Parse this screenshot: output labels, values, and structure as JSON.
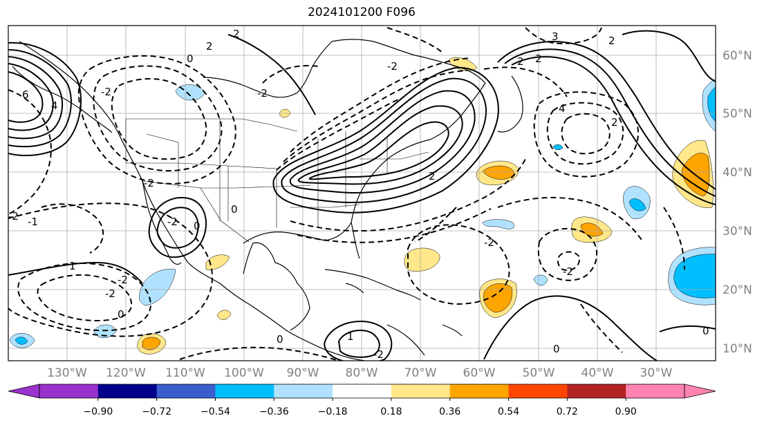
{
  "title": "2024101200 F096",
  "latitude_labels": [
    "60°N",
    "50°N",
    "40°N",
    "30°N",
    "20°N",
    "10°N"
  ],
  "longitude_labels": [
    "130°W",
    "120°W",
    "110°W",
    "100°W",
    "90°W",
    "80°W",
    "70°W",
    "60°W",
    "50°W",
    "40°W",
    "30°W"
  ],
  "colorbar": {
    "colors": [
      "#9a32cd",
      "#00008b",
      "#3a5fcd",
      "#00bfff",
      "#b0e2ff",
      "#ffffff",
      "#ffe78a",
      "#ffa500",
      "#ff4500",
      "#b22222",
      "#ff83b0"
    ],
    "under_color": "#9a32cd",
    "over_color": "#ff83b0",
    "tick_labels": [
      "−0.90",
      "−0.72",
      "−0.54",
      "−0.36",
      "−0.18",
      "0.18",
      "0.36",
      "0.54",
      "0.72",
      "0.90"
    ]
  },
  "contour_labels": [
    "2",
    "0",
    "2",
    "-2",
    "6",
    "4",
    "-2",
    "0",
    "-2",
    "-2",
    "4",
    "-2",
    "2",
    "-2",
    "2",
    "2",
    "0",
    "2",
    "-1",
    "1",
    "-2",
    "-2",
    "0",
    "-2",
    "0",
    "-2",
    "1",
    "0",
    "-2",
    "0",
    "2",
    "3"
  ]
}
